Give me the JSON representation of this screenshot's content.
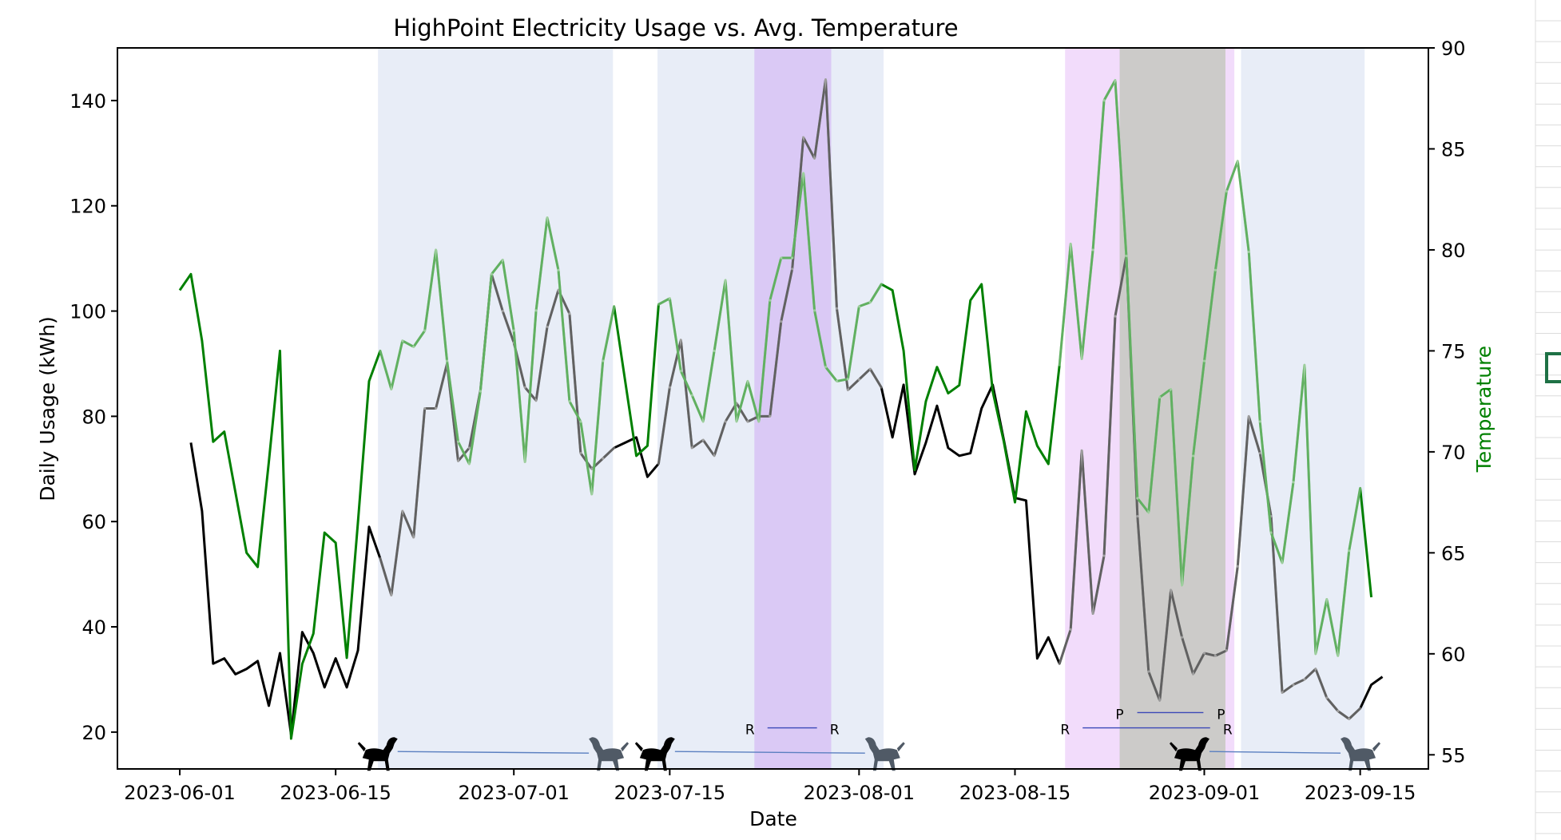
{
  "chart_data": {
    "type": "line",
    "title": "HighPoint Electricity Usage vs. Avg. Temperature",
    "xlabel": "Date",
    "ylabel": "Daily Usage (kWh)",
    "y2label": "Temperature",
    "ylim": [
      13,
      150
    ],
    "y2lim": [
      54.3,
      90
    ],
    "x_ticks": [
      "2023-06-01",
      "2023-06-15",
      "2023-07-01",
      "2023-07-15",
      "2023-08-01",
      "2023-08-15",
      "2023-09-01",
      "2023-09-15"
    ],
    "y_ticks": [
      20,
      40,
      60,
      80,
      100,
      120,
      140
    ],
    "y2_ticks": [
      55,
      60,
      65,
      70,
      75,
      80,
      85,
      90
    ],
    "start_date": "2023-06-01",
    "days": 108,
    "series": [
      {
        "name": "Daily Usage (kWh)",
        "axis": "left",
        "color": "#000000",
        "start_day": 1,
        "values": [
          75,
          62,
          33,
          34,
          31,
          32,
          33.5,
          25,
          35,
          19.5,
          39,
          35,
          28.5,
          34,
          28.5,
          35.5,
          59,
          53,
          46,
          62,
          57,
          81.5,
          81.5,
          90,
          71.5,
          74,
          85,
          107,
          100,
          94,
          85.5,
          83,
          97,
          104,
          99.5,
          73,
          70,
          72,
          74,
          75,
          76,
          68.5,
          71,
          85.5,
          94.5,
          74,
          75.5,
          72.5,
          79,
          82.5,
          79,
          80,
          80,
          98,
          108,
          133,
          129,
          144,
          100.5,
          85,
          87,
          89,
          85.5,
          76,
          86,
          69,
          75,
          82,
          74,
          72.5,
          73,
          81.5,
          86,
          75.5,
          64.5,
          64,
          34,
          38,
          33,
          39.5,
          73.5,
          42.5,
          53.5,
          99,
          110.5,
          61,
          31.5,
          26,
          47,
          38,
          31,
          35,
          34.5,
          35.5,
          51.5,
          80,
          73,
          61,
          27.5,
          29,
          30,
          32,
          26.5,
          24,
          22.5,
          24.5,
          29,
          30.5
        ]
      },
      {
        "name": "Temperature",
        "axis": "right",
        "color": "#008000",
        "start_day": 0,
        "values": [
          78,
          78.8,
          75.5,
          70.5,
          71,
          68,
          65,
          64.3,
          69.5,
          75,
          55.8,
          59.5,
          61,
          66,
          65.5,
          59.8,
          66.5,
          73.5,
          75,
          73.1,
          75.5,
          75.2,
          76,
          80,
          74.5,
          70.5,
          69.4,
          73,
          78.8,
          79.5,
          76,
          69.5,
          77,
          81.6,
          79,
          72.5,
          71.5,
          67.9,
          74.5,
          77.2,
          73.5,
          69.8,
          70.3,
          77.3,
          77.6,
          74,
          72.8,
          71.5,
          75,
          78.5,
          71.5,
          73.5,
          71.5,
          77.5,
          79.6,
          79.6,
          83.8,
          77,
          74.2,
          73.5,
          73.6,
          77.2,
          77.4,
          78.3,
          78,
          75,
          69.1,
          72.5,
          74.2,
          72.9,
          73.3,
          77.5,
          78.3,
          73,
          70.5,
          67.5,
          72,
          70.3,
          69.4,
          74.3,
          80.3,
          74.6,
          80,
          87.4,
          88.4,
          79.7,
          67.7,
          67,
          72.7,
          73.1,
          63.4,
          69.8,
          74.5,
          79,
          82.9,
          84.4,
          79.9,
          71.5,
          66,
          64.5,
          68.5,
          74.3,
          60,
          62.7,
          59.9,
          65.1,
          68.2,
          62.8
        ]
      }
    ],
    "shaded_regions": [
      {
        "start": 17.8,
        "end": 38.9,
        "color": "#e4eaf6"
      },
      {
        "start": 42.9,
        "end": 63.2,
        "color": "#e4eaf6"
      },
      {
        "start": 51.6,
        "end": 58.5,
        "color": "#d7c2f4"
      },
      {
        "start": 79.5,
        "end": 94.7,
        "color": "#f0d6fa"
      },
      {
        "start": 84.4,
        "end": 93.9,
        "color": "#c6c8c0"
      },
      {
        "start": 95.3,
        "end": 106.4,
        "color": "#e4eaf6"
      }
    ],
    "annotations": [
      {
        "type": "dog-span",
        "start": 17.7,
        "end": 38.6,
        "y": 16
      },
      {
        "type": "dog-span",
        "start": 42.6,
        "end": 63.4,
        "y": 16
      },
      {
        "type": "dog-span",
        "start": 90.6,
        "end": 106.1,
        "y": 16
      },
      {
        "type": "label-span",
        "start": 51.2,
        "end": 58.8,
        "y": 20.8,
        "label_start": "R",
        "label_end": "R"
      },
      {
        "type": "label-span",
        "start": 79.5,
        "end": 94.1,
        "y": 20.8,
        "label_start": "R",
        "label_end": "R"
      },
      {
        "type": "label-span",
        "start": 84.4,
        "end": 93.5,
        "y": 23.7,
        "label_start": "P",
        "label_end": "P"
      }
    ]
  }
}
